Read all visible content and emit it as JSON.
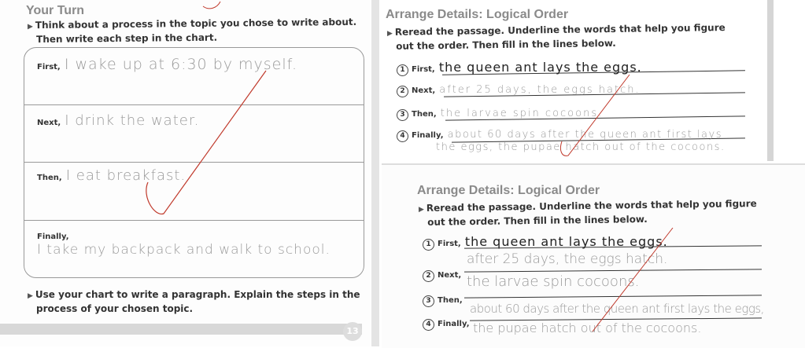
{
  "left_page": {
    "title": "Your Turn",
    "instruction_line1": "Think about a process in the topic you chose to write about.",
    "instruction_line2": "Then write each step in the chart.",
    "chart_rows": [
      {
        "label": "First,",
        "answer": "I wake up at 6:30 by myself."
      },
      {
        "label": "Next,",
        "answer": "I drink the water."
      },
      {
        "label": "Then,",
        "answer": "I eat breakfast."
      },
      {
        "label": "Finally,",
        "answer": "I take my backpack and walk to school."
      }
    ],
    "bottom_instruction_line1": "Use your chart to write a paragraph. Explain the steps in the",
    "bottom_instruction_line2": "process of your chosen topic.",
    "page_number": "13"
  },
  "worksheets": [
    {
      "title": "Arrange Details: Logical Order",
      "instruction_line1": "Reread the passage. Underline the words that help you figure",
      "instruction_line2": "out the order. Then fill in the lines below.",
      "rows": [
        {
          "num": "1",
          "label": "First,",
          "answer": "the queen ant lays the eggs."
        },
        {
          "num": "2",
          "label": "Next,",
          "answer": "after 25 days, the eggs hatch."
        },
        {
          "num": "3",
          "label": "Then,",
          "answer": "the larvae spin cocoons."
        },
        {
          "num": "4",
          "label": "Finally,",
          "answer": "about 60 days after the queen ant first lays",
          "continuation": "the eggs, the pupae hatch out of the cocoons."
        }
      ]
    },
    {
      "title": "Arrange Details: Logical Order",
      "instruction_line1": "Reread the passage. Underline the words that help you figure",
      "instruction_line2": "out the order. Then fill in the lines below.",
      "rows": [
        {
          "num": "1",
          "label": "First,",
          "answer": "the queen ant lays the eggs."
        },
        {
          "num": "2",
          "label": "Next,",
          "answer": "after 25 days, the eggs hatch."
        },
        {
          "num": "3",
          "label": "Then,",
          "answer": "the larvae spin cocoons."
        },
        {
          "num": "4",
          "label": "Finally,",
          "answer": "about 60 days after the queen ant first lays the eggs,",
          "continuation": "the pupae hatch out of the cocoons."
        }
      ]
    }
  ],
  "colors": {
    "heading_gray": "#8a8a8a",
    "pencil": "#9a9a9a",
    "teacher_mark": "#c0392b"
  }
}
